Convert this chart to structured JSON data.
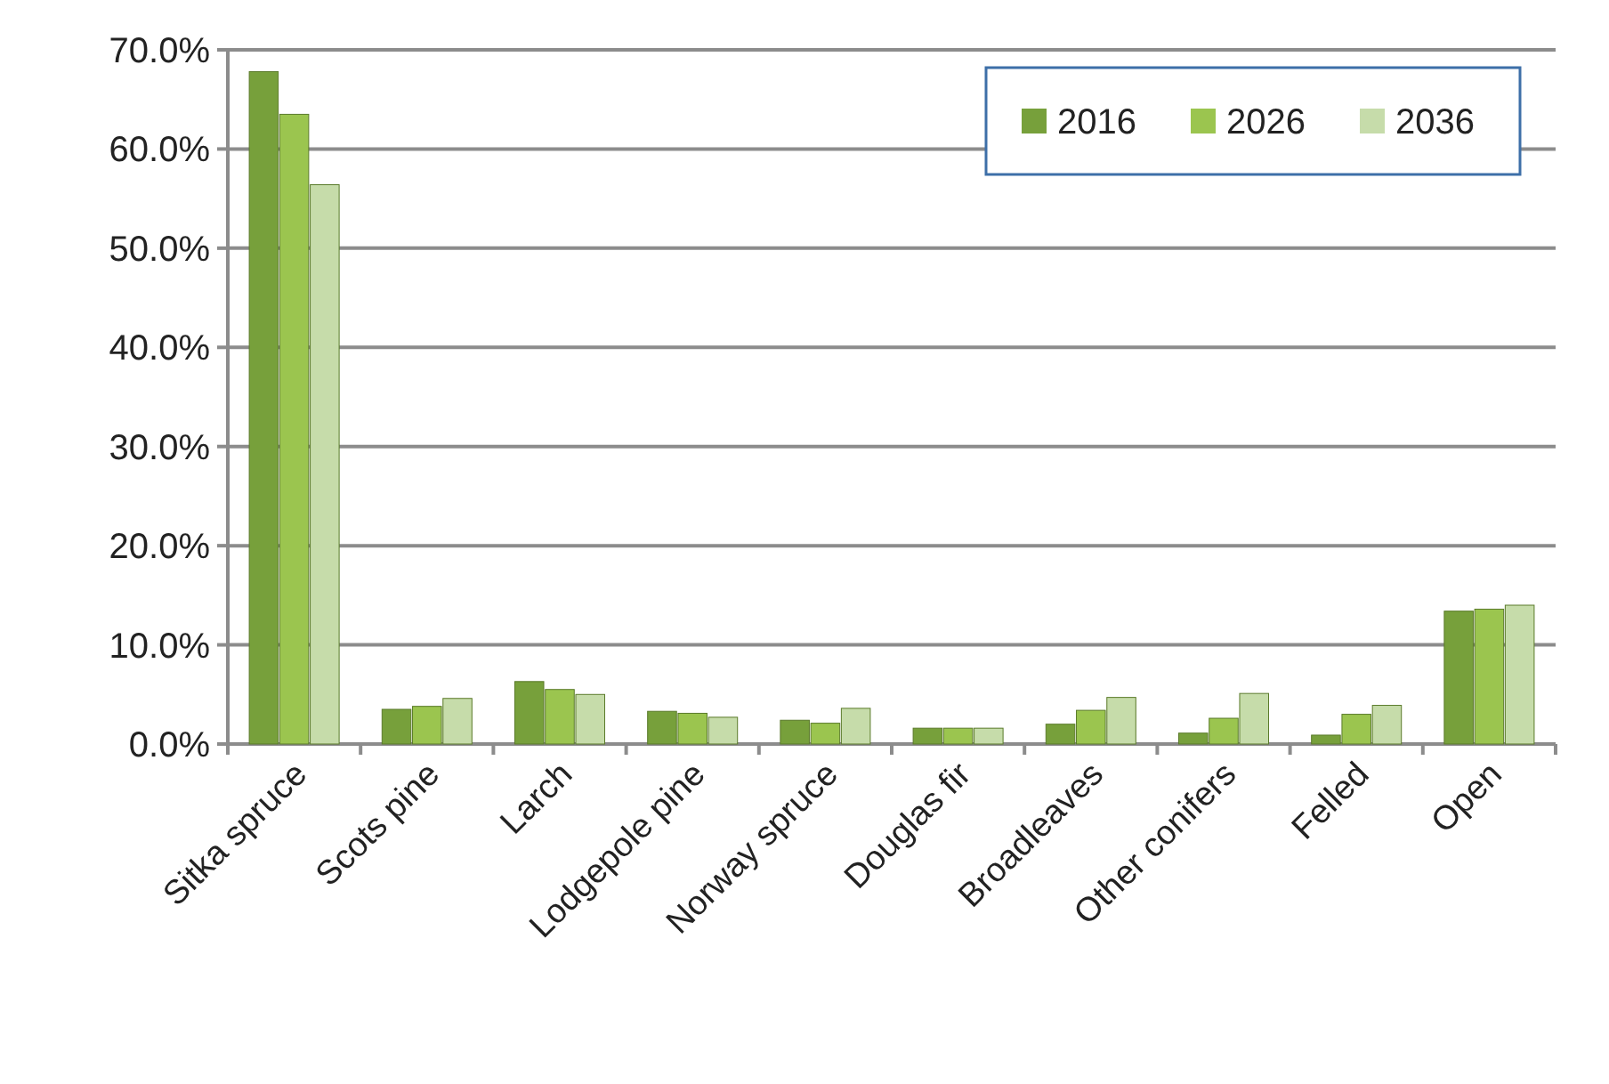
{
  "chart_data": {
    "type": "bar",
    "categories": [
      "Sitka spruce",
      "Scots pine",
      "Larch",
      "Lodgepole pine",
      "Norway spruce",
      "Douglas fir",
      "Broadleaves",
      "Other conifers",
      "Felled",
      "Open"
    ],
    "series": [
      {
        "name": "2016",
        "color": "#77a03b",
        "values": [
          67.8,
          3.5,
          6.3,
          3.3,
          2.4,
          1.6,
          2.0,
          1.1,
          0.9,
          13.4
        ]
      },
      {
        "name": "2026",
        "color": "#9bc54f",
        "values": [
          63.5,
          3.8,
          5.5,
          3.1,
          2.1,
          1.6,
          3.4,
          2.6,
          3.0,
          13.6
        ]
      },
      {
        "name": "2036",
        "color": "#c6dcaa",
        "values": [
          56.4,
          4.6,
          5.0,
          2.7,
          3.6,
          1.6,
          4.7,
          5.1,
          3.9,
          14.0
        ]
      }
    ],
    "ylim": [
      0,
      70
    ],
    "yticks": [
      {
        "value": 0,
        "label": "0.0%"
      },
      {
        "value": 10,
        "label": "10.0%"
      },
      {
        "value": 20,
        "label": "20.0%"
      },
      {
        "value": 30,
        "label": "30.0%"
      },
      {
        "value": 40,
        "label": "40.0%"
      },
      {
        "value": 50,
        "label": "50.0%"
      },
      {
        "value": 60,
        "label": "60.0%"
      },
      {
        "value": 70,
        "label": "70.0%"
      }
    ],
    "grid": "y",
    "legend": "top right"
  }
}
